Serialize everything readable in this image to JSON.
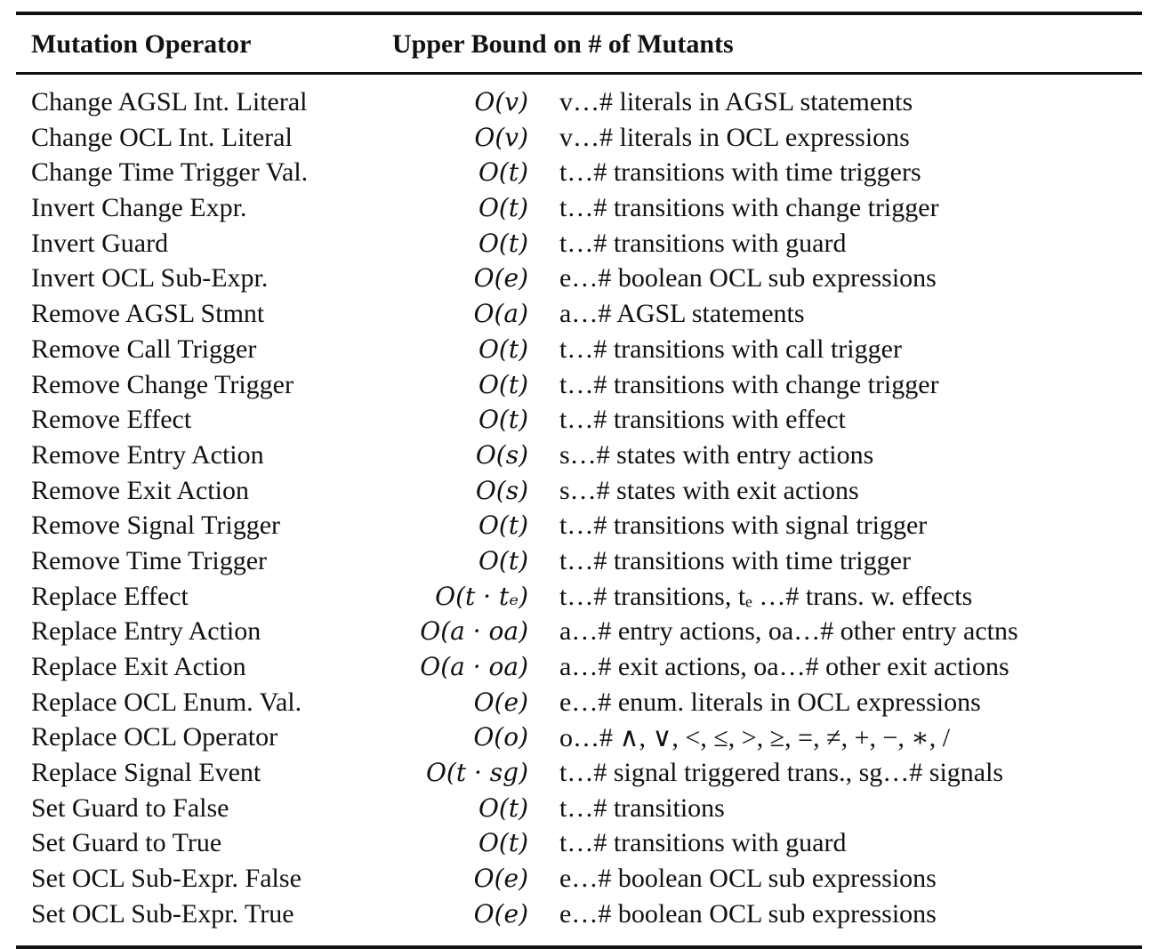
{
  "table": {
    "headers": {
      "operator": "Mutation Operator",
      "bound": "Upper Bound on # of Mutants"
    },
    "rows": [
      {
        "operator": "Change AGSL Int. Literal",
        "bound": "O(v)",
        "desc": "v…# literals in AGSL statements"
      },
      {
        "operator": "Change OCL Int. Literal",
        "bound": "O(v)",
        "desc": "v…# literals in OCL expressions"
      },
      {
        "operator": "Change Time Trigger Val.",
        "bound": "O(t)",
        "desc": "t…# transitions with time triggers"
      },
      {
        "operator": "Invert Change Expr.",
        "bound": "O(t)",
        "desc": "t…# transitions with change trigger"
      },
      {
        "operator": "Invert Guard",
        "bound": "O(t)",
        "desc": "t…# transitions with guard"
      },
      {
        "operator": "Invert OCL Sub-Expr.",
        "bound": "O(e)",
        "desc": "e…# boolean OCL sub expressions"
      },
      {
        "operator": "Remove AGSL Stmnt",
        "bound": "O(a)",
        "desc": "a…# AGSL statements"
      },
      {
        "operator": "Remove Call Trigger",
        "bound": "O(t)",
        "desc": "t…# transitions with call trigger"
      },
      {
        "operator": "Remove Change Trigger",
        "bound": "O(t)",
        "desc": "t…# transitions with change trigger"
      },
      {
        "operator": "Remove Effect",
        "bound": "O(t)",
        "desc": "t…# transitions with effect"
      },
      {
        "operator": "Remove Entry Action",
        "bound": "O(s)",
        "desc": "s…# states with entry actions"
      },
      {
        "operator": "Remove Exit Action",
        "bound": "O(s)",
        "desc": "s…# states with exit actions"
      },
      {
        "operator": "Remove Signal Trigger",
        "bound": "O(t)",
        "desc": "t…# transitions with signal trigger"
      },
      {
        "operator": "Remove Time Trigger",
        "bound": "O(t)",
        "desc": "t…# transitions with time trigger"
      },
      {
        "operator": "Replace Effect",
        "bound": "O(t · tₑ)",
        "desc": "t…# transitions, tₑ …# trans. w. effects"
      },
      {
        "operator": "Replace Entry Action",
        "bound": "O(a · oa)",
        "desc": "a…# entry actions, oa…# other entry actns"
      },
      {
        "operator": "Replace Exit Action",
        "bound": "O(a · oa)",
        "desc": "a…# exit actions, oa…# other exit actions"
      },
      {
        "operator": "Replace OCL Enum. Val.",
        "bound": "O(e)",
        "desc": "e…# enum. literals in OCL expressions"
      },
      {
        "operator": "Replace OCL Operator",
        "bound": "O(o)",
        "desc": "o…# ∧, ∨, <, ≤, >, ≥, =, ≠, +, −, ∗, /"
      },
      {
        "operator": "Replace Signal Event",
        "bound": "O(t · sg)",
        "desc": "t…# signal triggered trans., sg…# signals"
      },
      {
        "operator": "Set Guard to False",
        "bound": "O(t)",
        "desc": "t…# transitions"
      },
      {
        "operator": "Set Guard to True",
        "bound": "O(t)",
        "desc": "t…# transitions with guard"
      },
      {
        "operator": "Set OCL Sub-Expr. False",
        "bound": "O(e)",
        "desc": "e…# boolean OCL sub expressions"
      },
      {
        "operator": "Set OCL Sub-Expr. True",
        "bound": "O(e)",
        "desc": "e…# boolean OCL sub expressions"
      }
    ]
  }
}
